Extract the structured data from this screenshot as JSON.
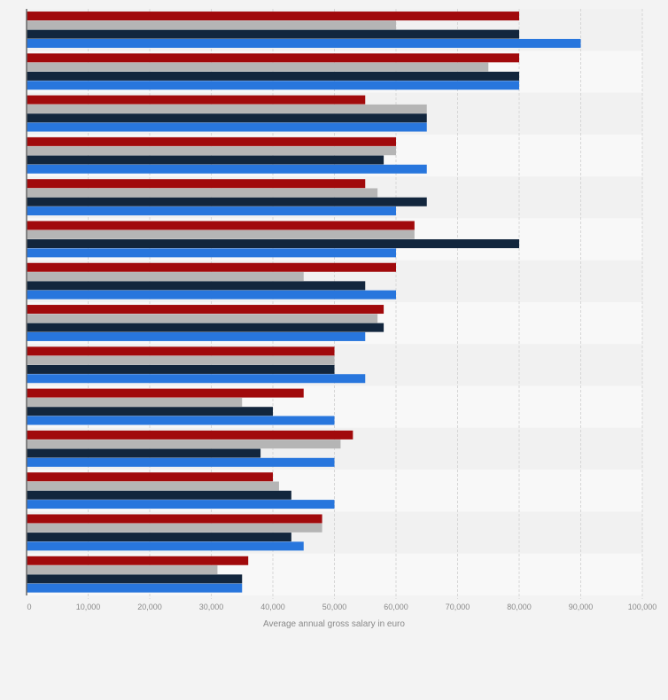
{
  "chart_data": {
    "type": "bar",
    "orientation": "horizontal",
    "title": "",
    "xlabel": "Average annual gross salary in euro",
    "ylabel": "",
    "xlim": [
      0,
      100000
    ],
    "xticks": [
      "0",
      "10,000",
      "20,000",
      "30,000",
      "40,000",
      "50,000",
      "60,000",
      "70,000",
      "80,000",
      "90,000",
      "100,000"
    ],
    "grid": true,
    "legend": "none",
    "categories": [
      "",
      "",
      "",
      "",
      "",
      "",
      "",
      "",
      "",
      "",
      "",
      "",
      "",
      ""
    ],
    "series": [
      {
        "color": "#a10a0c",
        "values": [
          80000,
          80000,
          55000,
          60000,
          55000,
          63000,
          60000,
          58000,
          50000,
          45000,
          53000,
          40000,
          48000,
          36000
        ]
      },
      {
        "color": "#b5b5b5",
        "values": [
          60000,
          75000,
          65000,
          60000,
          57000,
          63000,
          45000,
          57000,
          50000,
          35000,
          51000,
          41000,
          48000,
          31000
        ]
      },
      {
        "color": "#12263d",
        "values": [
          80000,
          80000,
          65000,
          58000,
          65000,
          80000,
          55000,
          58000,
          50000,
          40000,
          38000,
          43000,
          43000,
          35000
        ]
      },
      {
        "color": "#2876dd",
        "values": [
          90000,
          80000,
          65000,
          65000,
          60000,
          60000,
          60000,
          55000,
          55000,
          50000,
          50000,
          50000,
          45000,
          35000
        ]
      }
    ]
  }
}
